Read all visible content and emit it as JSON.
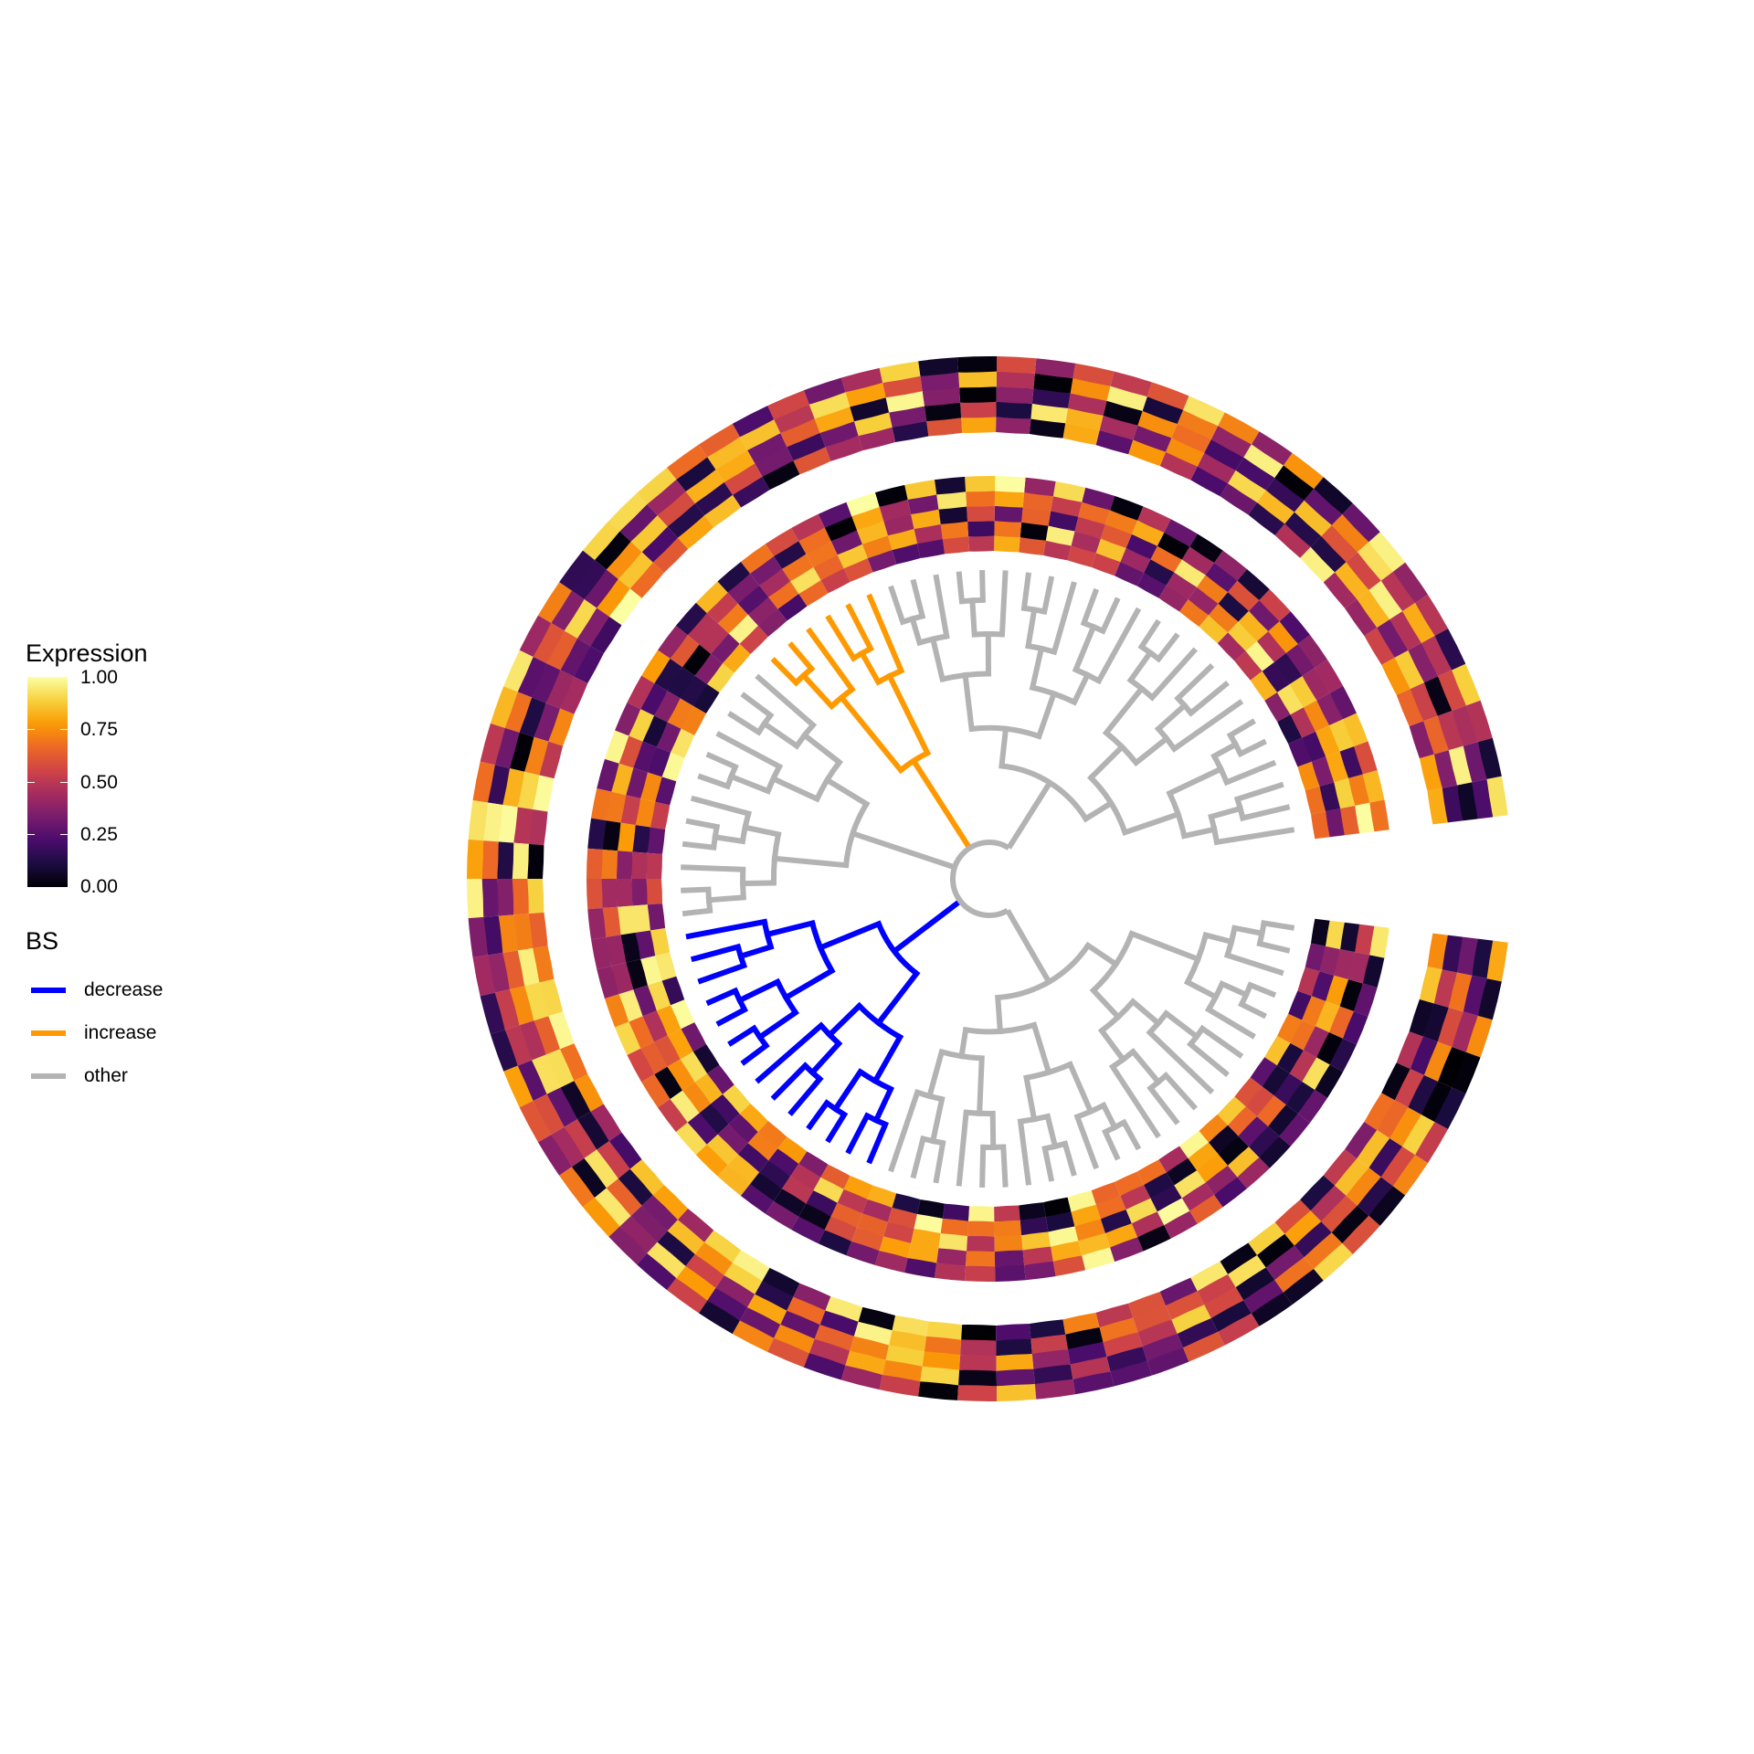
{
  "chart_data": {
    "type": "circular-tree-heatmap",
    "legend": {
      "expression": {
        "title": "Expression",
        "ticks": [
          "1.00",
          "0.75",
          "0.50",
          "0.25",
          "0.00"
        ],
        "range": [
          0,
          1
        ]
      },
      "bs": {
        "title": "BS",
        "items": [
          {
            "label": "decrease",
            "color": "#0000ff"
          },
          {
            "label": "increase",
            "color": "#ff9900"
          },
          {
            "label": "other",
            "color": "#b3b3b3"
          }
        ]
      }
    },
    "tree_clades": [
      {
        "group": "decrease",
        "tips": 14
      },
      {
        "group": "increase",
        "tips": 6
      },
      {
        "group": "other",
        "tips": 60
      }
    ],
    "heatmap_rings": [
      {
        "ring": "inner",
        "columns": 5
      },
      {
        "ring": "outer",
        "columns": 5
      }
    ],
    "colorscale": "inferno"
  }
}
